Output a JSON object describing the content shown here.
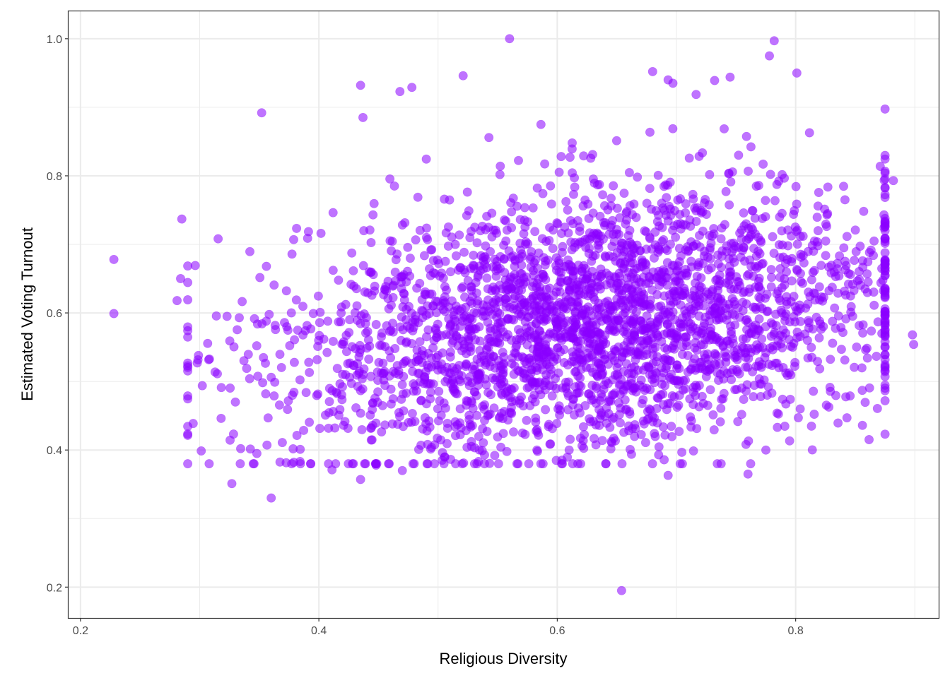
{
  "chart_data": {
    "type": "scatter",
    "title": "",
    "xlabel": "Religious Diversity",
    "ylabel": "Estimated Voting Turnout",
    "xlim": [
      0.19,
      0.92
    ],
    "ylim": [
      0.155,
      1.04
    ],
    "x_ticks": [
      0.2,
      0.4,
      0.6,
      0.8
    ],
    "x_tick_labels": [
      "0.2",
      "0.4",
      "0.6",
      "0.8"
    ],
    "y_ticks": [
      0.2,
      0.4,
      0.6,
      0.8,
      1.0
    ],
    "y_tick_labels": [
      "0.2",
      "0.4",
      "0.6",
      "0.8",
      "1.0"
    ],
    "grid": true,
    "point_color": "#8B00FF",
    "point_opacity": 0.55,
    "n_points_approx": 3000,
    "cluster_summary": {
      "x_center": 0.63,
      "x_std": 0.13,
      "y_center": 0.64,
      "y_std": 0.1,
      "correlation_sign": "positive"
    },
    "notable_points": [
      {
        "x": 0.228,
        "y": 0.678
      },
      {
        "x": 0.228,
        "y": 0.599
      },
      {
        "x": 0.352,
        "y": 0.892
      },
      {
        "x": 0.327,
        "y": 0.351
      },
      {
        "x": 0.36,
        "y": 0.33
      },
      {
        "x": 0.348,
        "y": 0.395
      },
      {
        "x": 0.56,
        "y": 1.0
      },
      {
        "x": 0.782,
        "y": 0.997
      },
      {
        "x": 0.654,
        "y": 0.195
      },
      {
        "x": 0.898,
        "y": 0.568
      },
      {
        "x": 0.899,
        "y": 0.554
      },
      {
        "x": 0.882,
        "y": 0.793
      },
      {
        "x": 0.68,
        "y": 0.952
      },
      {
        "x": 0.778,
        "y": 0.975
      },
      {
        "x": 0.801,
        "y": 0.95
      },
      {
        "x": 0.521,
        "y": 0.946
      },
      {
        "x": 0.435,
        "y": 0.932
      },
      {
        "x": 0.478,
        "y": 0.929
      },
      {
        "x": 0.468,
        "y": 0.923
      },
      {
        "x": 0.437,
        "y": 0.885
      },
      {
        "x": 0.745,
        "y": 0.944
      },
      {
        "x": 0.693,
        "y": 0.94
      },
      {
        "x": 0.732,
        "y": 0.939
      },
      {
        "x": 0.697,
        "y": 0.935
      },
      {
        "x": 0.775,
        "y": 0.4
      },
      {
        "x": 0.76,
        "y": 0.365
      },
      {
        "x": 0.693,
        "y": 0.363
      },
      {
        "x": 0.435,
        "y": 0.357
      },
      {
        "x": 0.47,
        "y": 0.37
      },
      {
        "x": 0.48,
        "y": 0.38
      },
      {
        "x": 0.411,
        "y": 0.371
      },
      {
        "x": 0.448,
        "y": 0.378
      },
      {
        "x": 0.61,
        "y": 0.4
      },
      {
        "x": 0.843,
        "y": 0.447
      },
      {
        "x": 0.856,
        "y": 0.436
      },
      {
        "x": 0.298,
        "y": 0.527
      },
      {
        "x": 0.299,
        "y": 0.538
      },
      {
        "x": 0.281,
        "y": 0.618
      },
      {
        "x": 0.284,
        "y": 0.65
      },
      {
        "x": 0.285,
        "y": 0.737
      }
    ]
  }
}
